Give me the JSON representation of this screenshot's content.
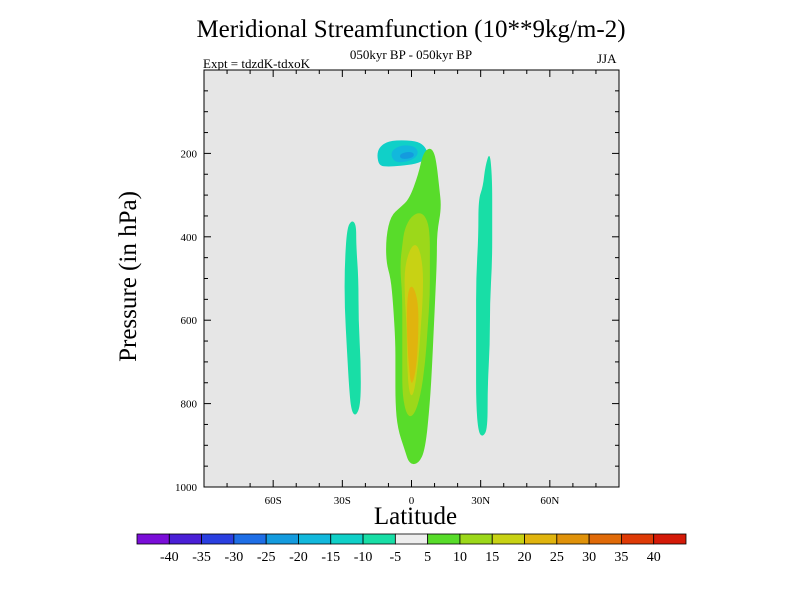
{
  "chart_data": {
    "type": "heatmap",
    "title": "Meridional Streamfunction (10**9kg/m-2)",
    "subtitle": "050kyr BP - 050kyr BP",
    "experiment": "Expt = tdzdK-tdxoK",
    "season": "JJA",
    "xlabel": "Latitude",
    "ylabel": "Pressure (in hPa)",
    "xlim": [
      -90,
      90
    ],
    "ylim": [
      1000,
      0
    ],
    "y_inverted": true,
    "x_ticks": [
      {
        "value": -60,
        "label": "60S"
      },
      {
        "value": -30,
        "label": "30S"
      },
      {
        "value": 0,
        "label": "0"
      },
      {
        "value": 30,
        "label": "30N"
      },
      {
        "value": 60,
        "label": "60N"
      }
    ],
    "y_ticks": [
      {
        "value": 200,
        "label": "200"
      },
      {
        "value": 400,
        "label": "400"
      },
      {
        "value": 600,
        "label": "600"
      },
      {
        "value": 800,
        "label": "800"
      },
      {
        "value": 1000,
        "label": "1000"
      }
    ],
    "y_minor_step": 50,
    "x_minor_step": 10,
    "background_color": "#e6e6e6",
    "colorbar": {
      "levels": [
        -40,
        -35,
        -30,
        -25,
        -20,
        -15,
        -10,
        -5,
        5,
        10,
        15,
        20,
        25,
        30,
        35,
        40
      ],
      "colors": [
        "#7a0ed8",
        "#4a1fd6",
        "#2a3fe0",
        "#1e6ee6",
        "#149bde",
        "#12b8dc",
        "#10d0c8",
        "#18dea6",
        "#eeeeee",
        "#58dc2a",
        "#9cd81a",
        "#c8d214",
        "#e0b40e",
        "#e0920a",
        "#e06a08",
        "#de3a06",
        "#d41a08"
      ]
    },
    "regions": [
      {
        "name": "upper-negative-cell",
        "value": -12,
        "color_index": 6,
        "outline": [
          [
            -14,
            230
          ],
          [
            -15,
            205
          ],
          [
            -14,
            185
          ],
          [
            -10,
            170
          ],
          [
            -3,
            168
          ],
          [
            3,
            172
          ],
          [
            6,
            185
          ],
          [
            7,
            200
          ],
          [
            6,
            215
          ],
          [
            2,
            225
          ],
          [
            -5,
            230
          ],
          [
            -10,
            232
          ]
        ]
      },
      {
        "name": "upper-negative-core",
        "value": -17,
        "color_index": 5,
        "outline": [
          [
            -7,
            222
          ],
          [
            -9,
            205
          ],
          [
            -8,
            190
          ],
          [
            -4,
            180
          ],
          [
            1,
            182
          ],
          [
            3,
            195
          ],
          [
            2,
            210
          ],
          [
            -2,
            220
          ]
        ]
      },
      {
        "name": "upper-negative-peak",
        "value": -22,
        "color_index": 4,
        "outline": [
          [
            -5,
            212
          ],
          [
            -5,
            202
          ],
          [
            -2,
            196
          ],
          [
            1,
            198
          ],
          [
            1,
            208
          ],
          [
            -2,
            214
          ]
        ]
      },
      {
        "name": "main-positive-cell",
        "value": 7,
        "color_index": 9,
        "outline": [
          [
            -9,
            350
          ],
          [
            -11,
            400
          ],
          [
            -11,
            460
          ],
          [
            -9,
            500
          ],
          [
            -8,
            560
          ],
          [
            -7,
            650
          ],
          [
            -7,
            720
          ],
          [
            -7,
            800
          ],
          [
            -6,
            860
          ],
          [
            -3,
            910
          ],
          [
            -1,
            945
          ],
          [
            3,
            945
          ],
          [
            6,
            910
          ],
          [
            8,
            800
          ],
          [
            9,
            700
          ],
          [
            10,
            580
          ],
          [
            11,
            460
          ],
          [
            11,
            390
          ],
          [
            13,
            330
          ],
          [
            12,
            280
          ],
          [
            11,
            230
          ],
          [
            10,
            200
          ],
          [
            8,
            185
          ],
          [
            5,
            200
          ],
          [
            3,
            250
          ],
          [
            -1,
            310
          ],
          [
            -5,
            330
          ]
        ]
      },
      {
        "name": "main-positive-core",
        "value": 12,
        "color_index": 10,
        "outline": [
          [
            -4,
            420
          ],
          [
            -5,
            470
          ],
          [
            -4,
            540
          ],
          [
            -4,
            620
          ],
          [
            -4,
            700
          ],
          [
            -4,
            780
          ],
          [
            -2,
            830
          ],
          [
            1,
            830
          ],
          [
            4,
            780
          ],
          [
            6,
            700
          ],
          [
            7,
            620
          ],
          [
            8,
            540
          ],
          [
            8,
            460
          ],
          [
            8,
            400
          ],
          [
            7,
            360
          ],
          [
            4,
            340
          ],
          [
            0,
            350
          ],
          [
            -3,
            380
          ]
        ]
      },
      {
        "name": "main-positive-inner",
        "value": 17,
        "color_index": 11,
        "outline": [
          [
            -3,
            470
          ],
          [
            -3,
            540
          ],
          [
            -2,
            620
          ],
          [
            -2,
            700
          ],
          [
            -1,
            780
          ],
          [
            1,
            780
          ],
          [
            3,
            700
          ],
          [
            4,
            620
          ],
          [
            5,
            540
          ],
          [
            5,
            470
          ],
          [
            3,
            420
          ],
          [
            0,
            420
          ]
        ]
      },
      {
        "name": "main-positive-peak",
        "value": 22,
        "color_index": 12,
        "outline": [
          [
            -2,
            560
          ],
          [
            -2,
            640
          ],
          [
            -1,
            720
          ],
          [
            0,
            760
          ],
          [
            2,
            720
          ],
          [
            3,
            640
          ],
          [
            3,
            560
          ],
          [
            1,
            520
          ],
          [
            -1,
            520
          ]
        ]
      },
      {
        "name": "left-negative-strip",
        "value": -7,
        "color_index": 7,
        "outline": [
          [
            -28,
            380
          ],
          [
            -29,
            470
          ],
          [
            -29,
            570
          ],
          [
            -28,
            670
          ],
          [
            -27,
            770
          ],
          [
            -26,
            820
          ],
          [
            -24,
            830
          ],
          [
            -22,
            800
          ],
          [
            -22,
            700
          ],
          [
            -23,
            600
          ],
          [
            -23,
            500
          ],
          [
            -24,
            420
          ],
          [
            -24,
            370
          ],
          [
            -26,
            360
          ]
        ]
      },
      {
        "name": "right-negative-strip",
        "value": -7,
        "color_index": 7,
        "outline": [
          [
            29,
            310
          ],
          [
            29,
            400
          ],
          [
            28,
            500
          ],
          [
            28,
            600
          ],
          [
            28,
            700
          ],
          [
            28,
            800
          ],
          [
            29,
            870
          ],
          [
            31,
            880
          ],
          [
            33,
            860
          ],
          [
            33,
            760
          ],
          [
            34,
            660
          ],
          [
            34,
            560
          ],
          [
            35,
            460
          ],
          [
            35,
            360
          ],
          [
            35,
            260
          ],
          [
            34,
            195
          ],
          [
            32,
            230
          ],
          [
            31,
            280
          ]
        ]
      }
    ]
  }
}
